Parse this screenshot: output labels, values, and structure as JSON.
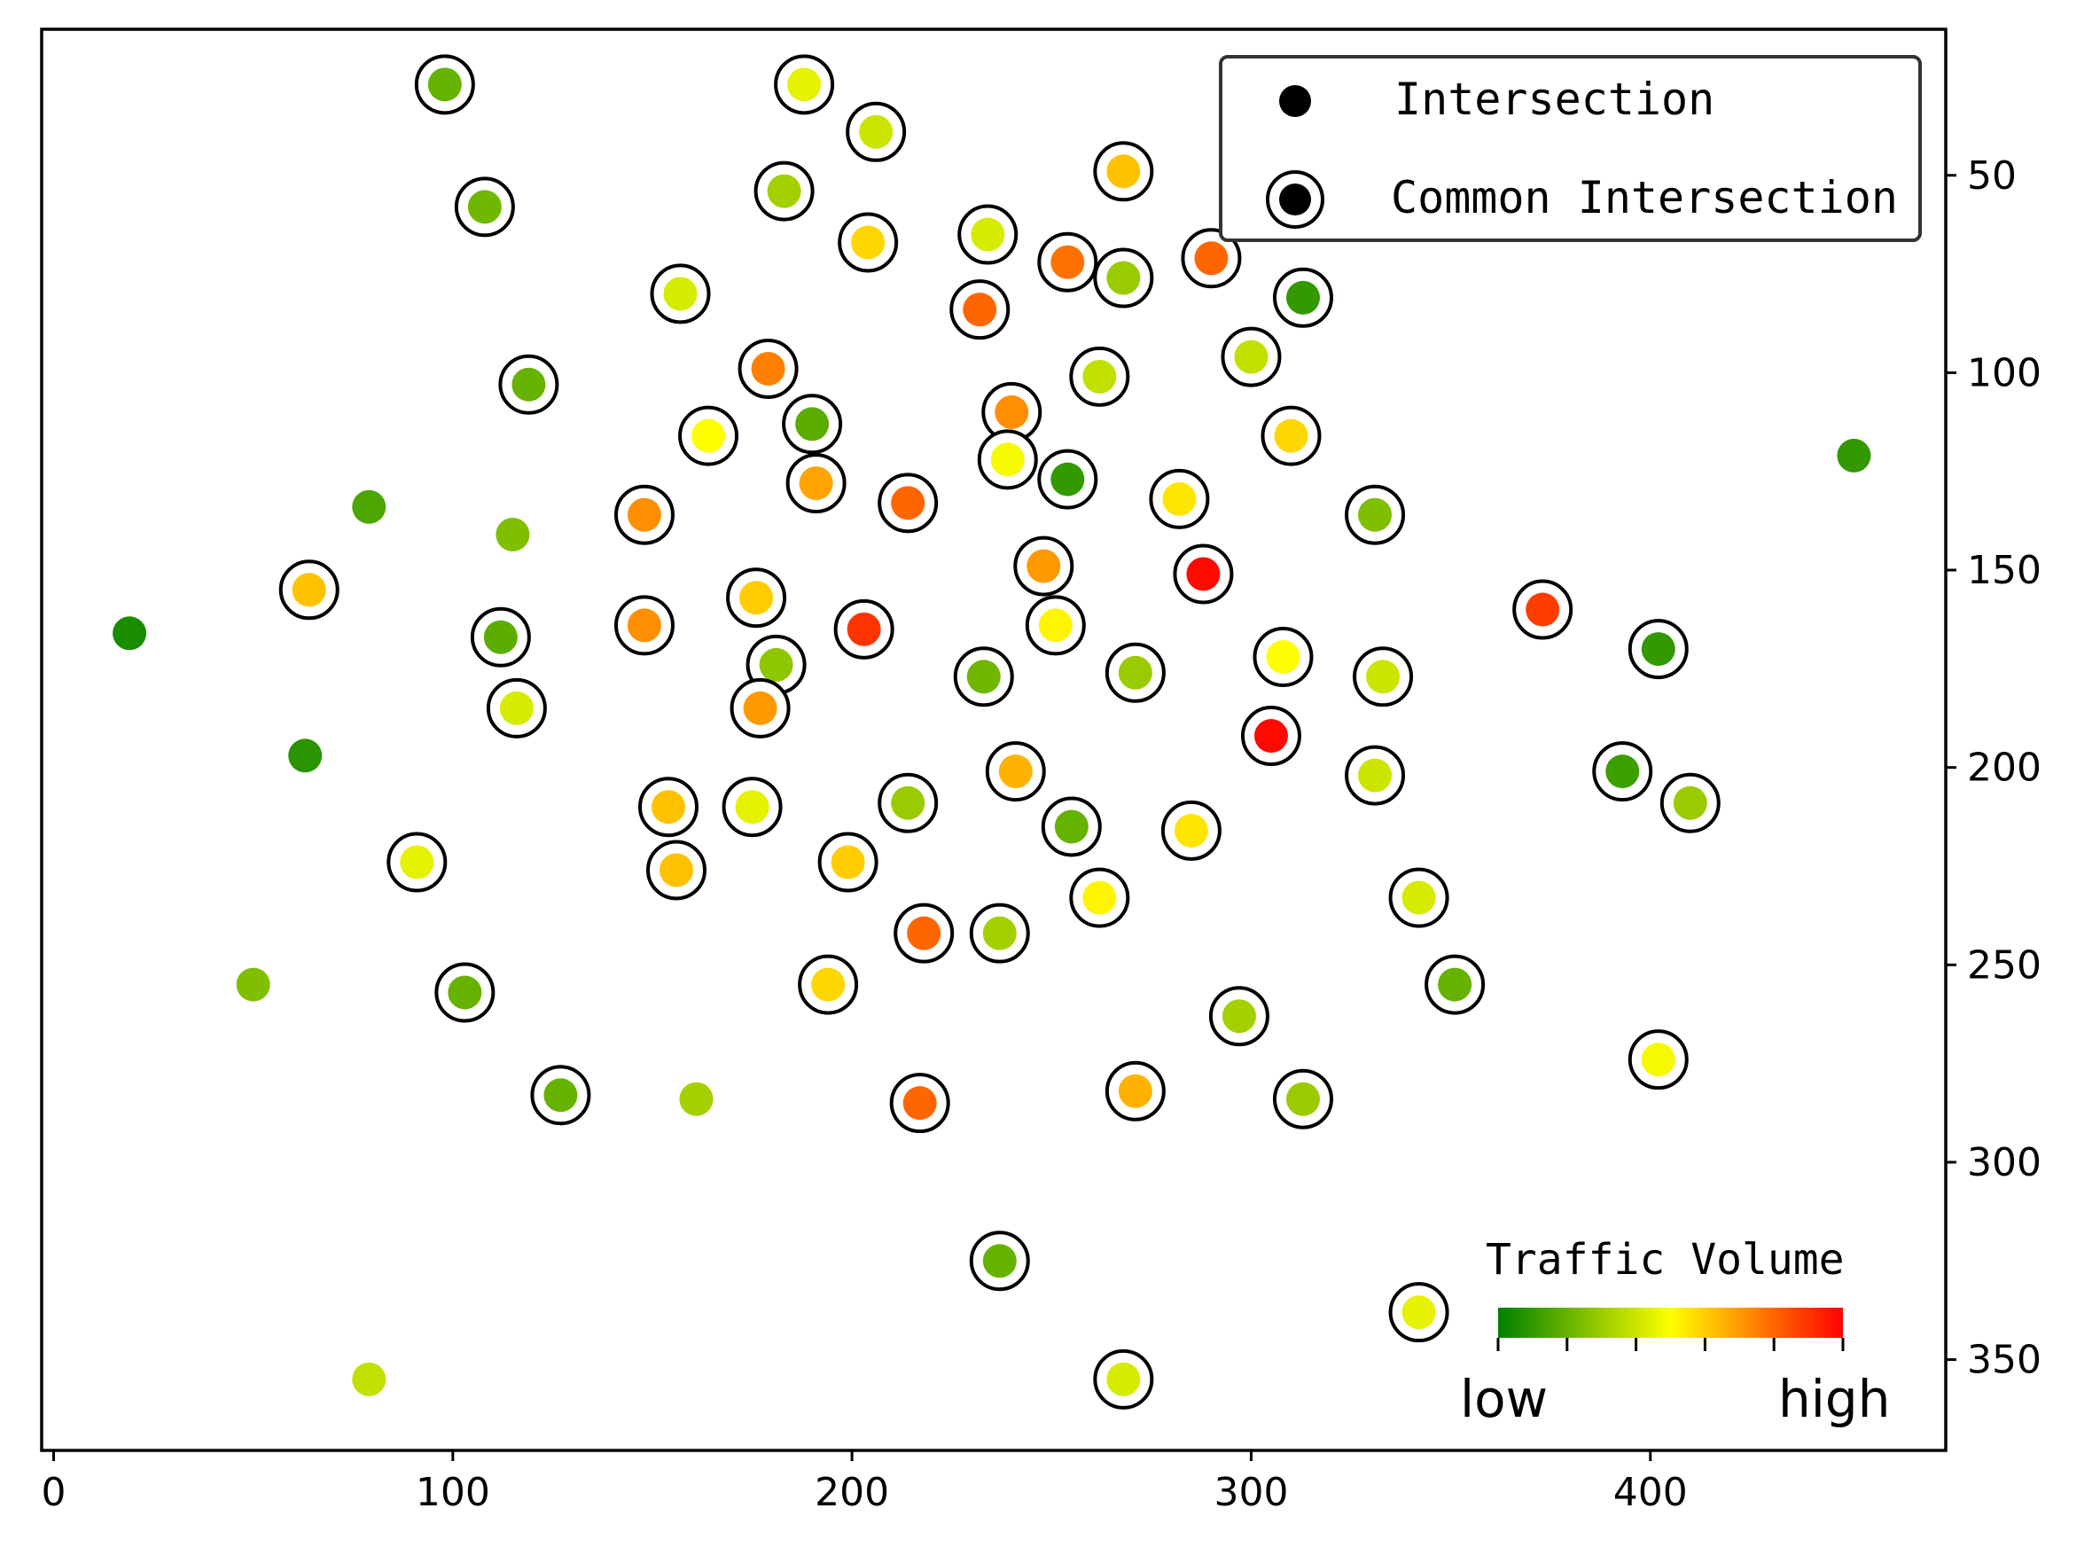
{
  "chart_data": {
    "type": "scatter",
    "title": "",
    "xlabel": "",
    "ylabel": "",
    "xlim": [
      -3,
      474
    ],
    "ylim": [
      373,
      13
    ],
    "x_ticks": [
      0,
      100,
      200,
      300,
      400
    ],
    "y_ticks": [
      50,
      100,
      150,
      200,
      250,
      300,
      350
    ],
    "y_axis_side": "right",
    "legend": {
      "position": "top-right",
      "entries": [
        {
          "label": "Intersection",
          "marker": "filled-circle"
        },
        {
          "label": "Common Intersection",
          "marker": "ringed-circle"
        }
      ]
    },
    "colorbar": {
      "title": "Traffic Volume",
      "low_label": "low",
      "high_label": "high",
      "colors": [
        "#008000",
        "#7fbf00",
        "#ffff00",
        "#ff8000",
        "#ff0000"
      ],
      "position": "bottom-right"
    },
    "points": [
      {
        "x": 98,
        "y": 27,
        "v": 0.2,
        "c": true
      },
      {
        "x": 188,
        "y": 27,
        "v": 0.45,
        "c": true
      },
      {
        "x": 206,
        "y": 39,
        "v": 0.4,
        "c": true
      },
      {
        "x": 268,
        "y": 49,
        "v": 0.62,
        "c": true
      },
      {
        "x": 108,
        "y": 58,
        "v": 0.22,
        "c": true
      },
      {
        "x": 183,
        "y": 54,
        "v": 0.32,
        "c": true
      },
      {
        "x": 204,
        "y": 67,
        "v": 0.58,
        "c": true
      },
      {
        "x": 234,
        "y": 65,
        "v": 0.42,
        "c": true
      },
      {
        "x": 254,
        "y": 72,
        "v": 0.78,
        "c": true
      },
      {
        "x": 268,
        "y": 76,
        "v": 0.3,
        "c": true
      },
      {
        "x": 290,
        "y": 71,
        "v": 0.8,
        "c": true
      },
      {
        "x": 313,
        "y": 81,
        "v": 0.1,
        "c": true
      },
      {
        "x": 157,
        "y": 80,
        "v": 0.42,
        "c": true
      },
      {
        "x": 232,
        "y": 84,
        "v": 0.8,
        "c": true
      },
      {
        "x": 300,
        "y": 96,
        "v": 0.38,
        "c": true
      },
      {
        "x": 262,
        "y": 101,
        "v": 0.38,
        "c": true
      },
      {
        "x": 119,
        "y": 103,
        "v": 0.2,
        "c": true
      },
      {
        "x": 179,
        "y": 99,
        "v": 0.75,
        "c": true
      },
      {
        "x": 190,
        "y": 113,
        "v": 0.18,
        "c": true
      },
      {
        "x": 240,
        "y": 110,
        "v": 0.72,
        "c": true
      },
      {
        "x": 164,
        "y": 116,
        "v": 0.5,
        "c": true
      },
      {
        "x": 310,
        "y": 116,
        "v": 0.58,
        "c": true
      },
      {
        "x": 239,
        "y": 122,
        "v": 0.48,
        "c": true
      },
      {
        "x": 254,
        "y": 127,
        "v": 0.1,
        "c": true
      },
      {
        "x": 191,
        "y": 128,
        "v": 0.68,
        "c": true
      },
      {
        "x": 214,
        "y": 133,
        "v": 0.8,
        "c": true
      },
      {
        "x": 282,
        "y": 132,
        "v": 0.55,
        "c": true
      },
      {
        "x": 148,
        "y": 136,
        "v": 0.72,
        "c": true
      },
      {
        "x": 331,
        "y": 136,
        "v": 0.25,
        "c": true
      },
      {
        "x": 451,
        "y": 121,
        "v": 0.1,
        "c": false
      },
      {
        "x": 79,
        "y": 134,
        "v": 0.15,
        "c": false
      },
      {
        "x": 115,
        "y": 141,
        "v": 0.25,
        "c": false
      },
      {
        "x": 248,
        "y": 149,
        "v": 0.7,
        "c": true
      },
      {
        "x": 288,
        "y": 151,
        "v": 0.98,
        "c": true
      },
      {
        "x": 64,
        "y": 155,
        "v": 0.62,
        "c": true
      },
      {
        "x": 176,
        "y": 157,
        "v": 0.6,
        "c": true
      },
      {
        "x": 251,
        "y": 164,
        "v": 0.52,
        "c": true
      },
      {
        "x": 373,
        "y": 160,
        "v": 0.88,
        "c": true
      },
      {
        "x": 19,
        "y": 166,
        "v": 0.05,
        "c": false
      },
      {
        "x": 148,
        "y": 164,
        "v": 0.72,
        "c": true
      },
      {
        "x": 203,
        "y": 165,
        "v": 0.9,
        "c": true
      },
      {
        "x": 112,
        "y": 167,
        "v": 0.18,
        "c": true
      },
      {
        "x": 402,
        "y": 170,
        "v": 0.1,
        "c": true
      },
      {
        "x": 308,
        "y": 172,
        "v": 0.5,
        "c": true
      },
      {
        "x": 181,
        "y": 174,
        "v": 0.28,
        "c": true
      },
      {
        "x": 233,
        "y": 177,
        "v": 0.22,
        "c": true
      },
      {
        "x": 271,
        "y": 176,
        "v": 0.3,
        "c": true
      },
      {
        "x": 333,
        "y": 177,
        "v": 0.4,
        "c": true
      },
      {
        "x": 116,
        "y": 185,
        "v": 0.42,
        "c": true
      },
      {
        "x": 177,
        "y": 185,
        "v": 0.7,
        "c": true
      },
      {
        "x": 305,
        "y": 192,
        "v": 0.98,
        "c": true
      },
      {
        "x": 63,
        "y": 197,
        "v": 0.08,
        "c": false
      },
      {
        "x": 241,
        "y": 201,
        "v": 0.65,
        "c": true
      },
      {
        "x": 331,
        "y": 202,
        "v": 0.4,
        "c": true
      },
      {
        "x": 393,
        "y": 201,
        "v": 0.12,
        "c": true
      },
      {
        "x": 410,
        "y": 209,
        "v": 0.3,
        "c": true
      },
      {
        "x": 154,
        "y": 210,
        "v": 0.62,
        "c": true
      },
      {
        "x": 175,
        "y": 210,
        "v": 0.45,
        "c": true
      },
      {
        "x": 214,
        "y": 209,
        "v": 0.3,
        "c": true
      },
      {
        "x": 255,
        "y": 215,
        "v": 0.2,
        "c": true
      },
      {
        "x": 285,
        "y": 216,
        "v": 0.55,
        "c": true
      },
      {
        "x": 91,
        "y": 224,
        "v": 0.45,
        "c": true
      },
      {
        "x": 156,
        "y": 226,
        "v": 0.62,
        "c": true
      },
      {
        "x": 199,
        "y": 224,
        "v": 0.6,
        "c": true
      },
      {
        "x": 262,
        "y": 233,
        "v": 0.52,
        "c": true
      },
      {
        "x": 342,
        "y": 233,
        "v": 0.42,
        "c": true
      },
      {
        "x": 218,
        "y": 242,
        "v": 0.8,
        "c": true
      },
      {
        "x": 237,
        "y": 242,
        "v": 0.32,
        "c": true
      },
      {
        "x": 50,
        "y": 255,
        "v": 0.25,
        "c": false
      },
      {
        "x": 103,
        "y": 257,
        "v": 0.2,
        "c": true
      },
      {
        "x": 194,
        "y": 255,
        "v": 0.58,
        "c": true
      },
      {
        "x": 351,
        "y": 255,
        "v": 0.2,
        "c": true
      },
      {
        "x": 297,
        "y": 263,
        "v": 0.32,
        "c": true
      },
      {
        "x": 402,
        "y": 274,
        "v": 0.48,
        "c": true
      },
      {
        "x": 127,
        "y": 283,
        "v": 0.2,
        "c": true
      },
      {
        "x": 161,
        "y": 284,
        "v": 0.32,
        "c": false
      },
      {
        "x": 217,
        "y": 285,
        "v": 0.8,
        "c": true
      },
      {
        "x": 271,
        "y": 282,
        "v": 0.65,
        "c": true
      },
      {
        "x": 313,
        "y": 284,
        "v": 0.3,
        "c": true
      },
      {
        "x": 237,
        "y": 325,
        "v": 0.2,
        "c": true
      },
      {
        "x": 342,
        "y": 338,
        "v": 0.45,
        "c": true
      },
      {
        "x": 79,
        "y": 355,
        "v": 0.38,
        "c": false
      },
      {
        "x": 268,
        "y": 355,
        "v": 0.42,
        "c": true
      }
    ]
  }
}
